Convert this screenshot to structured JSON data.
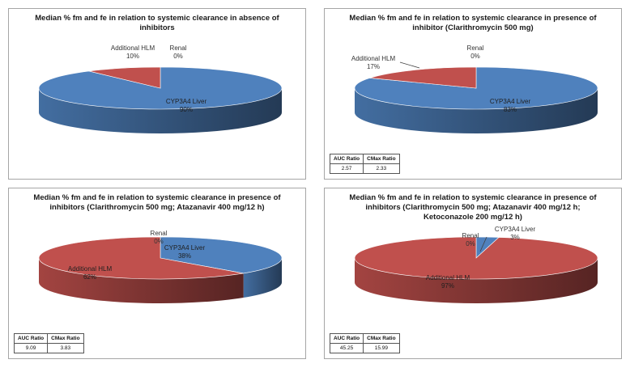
{
  "chart_data": [
    {
      "type": "pie",
      "title_lines": [
        "Median % fm and fe in relation to systemic clearance in absence of",
        "inhibitors"
      ],
      "categories": [
        "CYP3A4 Liver",
        "Additional HLM",
        "Renal"
      ],
      "values": [
        90,
        10,
        0
      ],
      "value_labels": [
        "90%",
        "10%",
        "0%"
      ],
      "colors": [
        "#4f81bd",
        "#c0504d",
        "#9bbb59"
      ],
      "ratio_table": null
    },
    {
      "type": "pie",
      "title_lines": [
        "Median % fm and fe in relation to systemic clearance in presence of",
        "inhibitor (Clarithromycin 500 mg)"
      ],
      "categories": [
        "CYP3A4 Liver",
        "Additional HLM",
        "Renal"
      ],
      "values": [
        83,
        17,
        0
      ],
      "value_labels": [
        "83%",
        "17%",
        "0%"
      ],
      "colors": [
        "#4f81bd",
        "#c0504d",
        "#9bbb59"
      ],
      "ratio_table": {
        "headers": [
          "AUC Ratio",
          "CMax Ratio"
        ],
        "values": [
          "2.57",
          "2.33"
        ]
      }
    },
    {
      "type": "pie",
      "title_lines": [
        "Median % fm and fe in relation to systemic clearance in presence of",
        "inhibitors (Clarithromycin 500 mg; Atazanavir 400 mg/12 h)"
      ],
      "categories": [
        "CYP3A4 Liver",
        "Additional HLM",
        "Renal"
      ],
      "values": [
        38,
        62,
        0
      ],
      "value_labels": [
        "38%",
        "62%",
        "0%"
      ],
      "colors": [
        "#4f81bd",
        "#c0504d",
        "#9bbb59"
      ],
      "ratio_table": {
        "headers": [
          "AUC Ratio",
          "CMax Ratio"
        ],
        "values": [
          "9.09",
          "3.83"
        ]
      }
    },
    {
      "type": "pie",
      "title_lines": [
        "Median % fm and fe in relation to systemic clearance in presence of",
        "inhibitors (Clarithromycin 500 mg; Atazanavir 400 mg/12 h;",
        "Ketoconazole 200 mg/12 h)"
      ],
      "categories": [
        "CYP3A4 Liver",
        "Additional HLM",
        "Renal"
      ],
      "values": [
        3,
        97,
        0
      ],
      "value_labels": [
        "3%",
        "97%",
        "0%"
      ],
      "colors": [
        "#4f81bd",
        "#c0504d",
        "#9bbb59"
      ],
      "ratio_table": {
        "headers": [
          "AUC Ratio",
          "CMax Ratio"
        ],
        "values": [
          "45.25",
          "15.99"
        ]
      }
    }
  ]
}
